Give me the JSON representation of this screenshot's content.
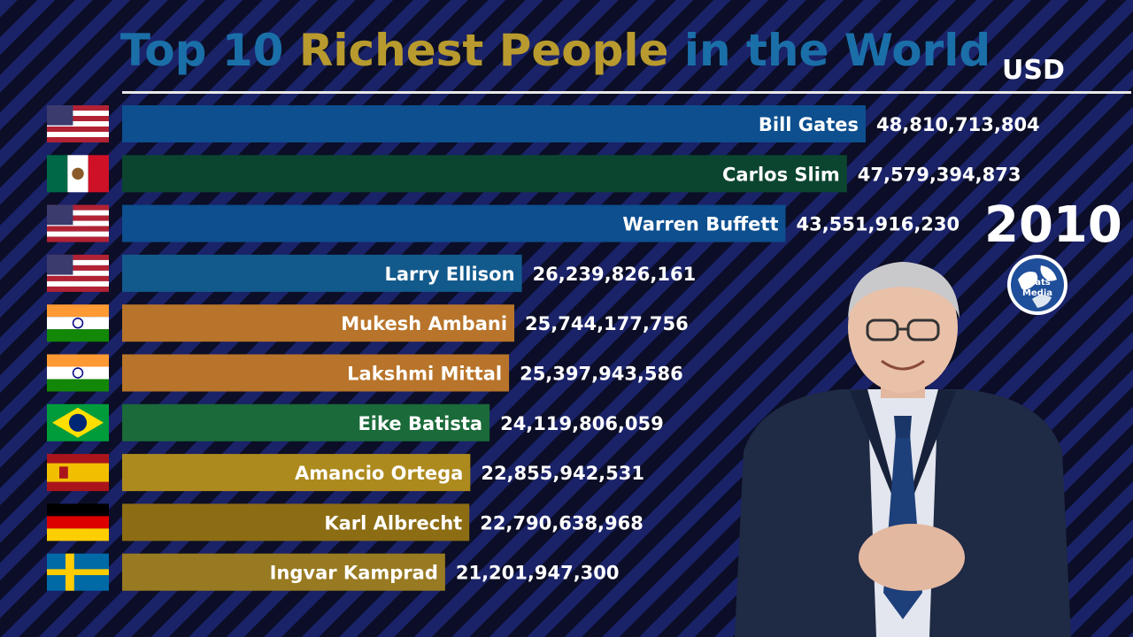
{
  "header": {
    "title_parts": [
      {
        "text": "Top 10 ",
        "color": "#1b6fa8"
      },
      {
        "text": "Richest People",
        "color": "#b89a2e"
      },
      {
        "text": " in the World",
        "color": "#1b6fa8"
      }
    ],
    "currency": "USD",
    "year": "2010"
  },
  "logo": {
    "icon": "globe-icon",
    "line1": "Stats",
    "line2": "Media"
  },
  "chart_data": {
    "type": "bar",
    "orientation": "horizontal",
    "categories": [
      "Bill Gates",
      "Carlos Slim",
      "Warren Buffett",
      "Larry Ellison",
      "Mukesh Ambani",
      "Lakshmi Mittal",
      "Eike Batista",
      "Amancio Ortega",
      "Karl Albrecht",
      "Ingvar Kamprad"
    ],
    "values": [
      48810713804,
      47579394873,
      43551916230,
      26239826161,
      25744177756,
      25397943586,
      24119806059,
      22855942531,
      22790638968,
      21201947300
    ],
    "value_labels": [
      "48,810,713,804",
      "47,579,394,873",
      "43,551,916,230",
      "26,239,826,161",
      "25,744,177,756",
      "25,397,943,586",
      "24,119,806,059",
      "22,855,942,531",
      "22,790,638,968",
      "21,201,947,300"
    ],
    "flags": [
      "usa",
      "mexico",
      "usa",
      "usa",
      "india",
      "india",
      "brazil",
      "spain",
      "germany",
      "sweden"
    ],
    "colors": [
      "#0d4f8f",
      "#0b4530",
      "#0d4f8f",
      "#135a8c",
      "#b8742a",
      "#b8742a",
      "#1a6a3a",
      "#ad8a1e",
      "#8c6d14",
      "#987a22"
    ],
    "xlim": [
      0,
      48810713804
    ],
    "title": "Top 10 Richest People in the World",
    "xlabel": "",
    "ylabel": ""
  }
}
